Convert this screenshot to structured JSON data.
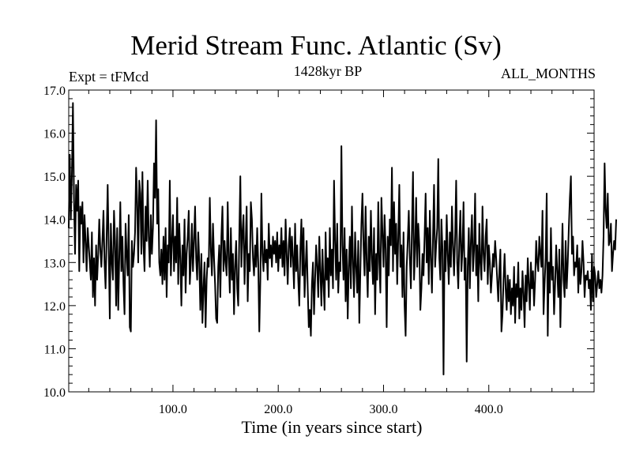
{
  "chart_data": {
    "type": "line",
    "title": "Merid Stream Func. Atlantic (Sv)",
    "subtitle": "1428kyr BP",
    "left_label": "Expt = tFMcd",
    "right_label": "ALL_MONTHS",
    "xlabel": "Time (in years since start)",
    "ylabel": "",
    "xlim": [
      1,
      500
    ],
    "ylim": [
      10.0,
      17.0
    ],
    "x_ticks": [
      100,
      200,
      300,
      400
    ],
    "x_tick_labels": [
      "100.0",
      "200.0",
      "300.0",
      "400.0"
    ],
    "y_ticks": [
      10,
      11,
      12,
      13,
      14,
      15,
      16,
      17
    ],
    "y_tick_labels": [
      "10.0",
      "11.0",
      "12.0",
      "13.0",
      "14.0",
      "15.0",
      "16.0",
      "17.0"
    ],
    "series": [
      {
        "name": "Merid Stream Func. Atlantic",
        "x_start": 1,
        "x_step": 1,
        "values": [
          13.8,
          15.5,
          14.0,
          15.0,
          16.7,
          14.5,
          13.2,
          14.8,
          14.2,
          14.9,
          12.8,
          14.3,
          13.9,
          14.4,
          13.0,
          14.1,
          13.5,
          12.8,
          13.8,
          13.4,
          13.0,
          12.6,
          13.7,
          12.2,
          13.1,
          12.0,
          13.4,
          12.6,
          13.2,
          14.0,
          13.3,
          12.9,
          13.5,
          14.2,
          13.0,
          12.4,
          13.6,
          14.8,
          13.3,
          11.7,
          13.9,
          13.0,
          12.6,
          14.2,
          13.5,
          12.0,
          13.8,
          11.9,
          13.1,
          14.4,
          12.8,
          13.6,
          12.5,
          11.8,
          13.9,
          13.2,
          12.7,
          14.1,
          11.5,
          11.4,
          13.5,
          12.9,
          13.2,
          13.7,
          15.2,
          14.4,
          13.0,
          14.9,
          14.6,
          13.2,
          15.1,
          13.4,
          12.8,
          14.3,
          13.5,
          14.9,
          13.6,
          12.9,
          14.1,
          13.2,
          13.8,
          15.3,
          14.5,
          16.3,
          13.9,
          14.7,
          13.0,
          12.7,
          13.3,
          12.5,
          13.6,
          12.6,
          13.8,
          12.2,
          13.4,
          13.0,
          14.9,
          12.7,
          13.5,
          14.1,
          12.8,
          13.6,
          13.0,
          14.5,
          12.5,
          13.9,
          13.1,
          12.0,
          13.4,
          12.7,
          14.0,
          12.3,
          13.2,
          13.6,
          14.2,
          12.5,
          13.0,
          13.9,
          12.8,
          13.5,
          14.3,
          13.1,
          12.6,
          13.7,
          13.0,
          11.9,
          13.2,
          11.6,
          12.4,
          13.0,
          11.5,
          12.6,
          13.1,
          12.9,
          14.5,
          13.3,
          12.7,
          13.9,
          13.1,
          12.5,
          11.7,
          11.6,
          12.9,
          13.4,
          12.2,
          13.6,
          14.3,
          12.8,
          13.5,
          13.0,
          12.7,
          14.4,
          13.1,
          12.3,
          13.8,
          12.6,
          13.2,
          11.8,
          12.9,
          13.5,
          12.4,
          12.0,
          13.6,
          15.0,
          12.9,
          13.7,
          14.1,
          12.5,
          13.4,
          14.3,
          12.1,
          13.2,
          12.8,
          14.4,
          14.0,
          13.1,
          12.7,
          13.4,
          12.9,
          13.8,
          13.0,
          11.4,
          12.6,
          14.6,
          13.2,
          12.8,
          13.5,
          13.0,
          13.3,
          12.6,
          13.9,
          13.1,
          13.4,
          12.9,
          13.6,
          13.2,
          13.5,
          13.0,
          13.7,
          12.8,
          13.4,
          13.1,
          13.8,
          12.9,
          13.5,
          12.7,
          14.0,
          13.2,
          12.5,
          13.4,
          13.8,
          12.9,
          13.6,
          13.1,
          12.4,
          13.9,
          12.8,
          13.4,
          12.6,
          12.0,
          13.3,
          14.0,
          12.7,
          13.8,
          12.2,
          12.9,
          13.5,
          12.4,
          11.5,
          11.9,
          11.3,
          12.5,
          13.0,
          11.8,
          12.6,
          13.4,
          12.9,
          12.2,
          13.6,
          12.8,
          12.0,
          13.3,
          12.5,
          11.9,
          13.7,
          12.6,
          13.1,
          12.2,
          13.8,
          12.7,
          13.3,
          12.4,
          14.9,
          13.5,
          12.6,
          13.9,
          12.3,
          13.0,
          12.8,
          15.7,
          13.4,
          12.6,
          13.8,
          12.1,
          13.3,
          11.7,
          12.9,
          13.6,
          12.4,
          14.3,
          13.0,
          12.2,
          13.7,
          12.9,
          12.3,
          13.5,
          11.6,
          12.8,
          13.9,
          14.6,
          13.4,
          12.7,
          14.3,
          13.0,
          12.2,
          13.6,
          12.8,
          14.2,
          13.1,
          12.5,
          13.8,
          11.8,
          13.2,
          12.6,
          14.4,
          13.0,
          12.3,
          14.5,
          13.7,
          12.9,
          14.1,
          13.3,
          11.5,
          13.6,
          12.7,
          14.0,
          13.4,
          15.2,
          12.8,
          14.4,
          13.2,
          13.9,
          12.5,
          13.6,
          14.8,
          12.9,
          13.4,
          12.2,
          13.7,
          12.0,
          11.3,
          12.9,
          13.5,
          14.2,
          13.1,
          12.4,
          13.8,
          15.1,
          12.6,
          13.3,
          14.5,
          12.9,
          13.9,
          13.4,
          11.9,
          12.4,
          13.2,
          12.7,
          13.6,
          14.6,
          13.0,
          13.8,
          12.5,
          14.2,
          13.1,
          12.3,
          13.6,
          14.8,
          12.9,
          13.4,
          13.8,
          15.4,
          13.1,
          12.6,
          14.0,
          13.3,
          10.4,
          13.5,
          12.8,
          14.1,
          13.2,
          12.5,
          13.7,
          12.9,
          14.3,
          13.4,
          12.7,
          13.6,
          14.9,
          13.0,
          12.4,
          13.5,
          14.2,
          12.8,
          13.3,
          14.4,
          12.6,
          13.1,
          10.7,
          12.9,
          13.8,
          12.4,
          13.5,
          14.1,
          12.8,
          13.3,
          14.6,
          12.7,
          13.4,
          12.1,
          13.9,
          13.0,
          12.6,
          14.3,
          13.2,
          12.8,
          13.6,
          14.0,
          12.5,
          13.4,
          13.0,
          12.3,
          12.7,
          13.2,
          12.9,
          13.5,
          13.1,
          12.6,
          12.1,
          12.8,
          13.3,
          11.4,
          11.8,
          12.6,
          13.2,
          12.4,
          11.9,
          12.7,
          12.1,
          12.6,
          11.8,
          12.4,
          12.0,
          12.9,
          11.6,
          12.5,
          12.2,
          13.0,
          11.7,
          12.4,
          11.9,
          12.8,
          12.3,
          11.5,
          12.7,
          12.1,
          13.1,
          12.5,
          11.9,
          13.0,
          12.4,
          12.8,
          12.0,
          12.6,
          13.5,
          13.0,
          12.8,
          13.6,
          13.2,
          12.9,
          14.2,
          11.8,
          12.5,
          13.1,
          14.6,
          11.3,
          13.0,
          12.3,
          13.8,
          12.6,
          12.9,
          11.8,
          12.5,
          13.4,
          12.8,
          12.2,
          13.3,
          11.5,
          12.7,
          13.9,
          12.6,
          12.2,
          13.5,
          12.4,
          13.0,
          13.8,
          14.5,
          15.0,
          13.2,
          13.6,
          12.7,
          13.0,
          12.9,
          13.4,
          12.3,
          13.1,
          12.5,
          12.8,
          13.5,
          13.0,
          12.2,
          12.7,
          12.6,
          12.8,
          12.4,
          12.6,
          11.9,
          13.2,
          12.1,
          12.9,
          12.7,
          12.2,
          12.5,
          12.8,
          12.4,
          12.6,
          12.3,
          12.7,
          13.6,
          15.3,
          14.2,
          13.8,
          14.6,
          13.4,
          13.5,
          13.9,
          12.8,
          13.2,
          13.5,
          13.3,
          14.0
        ]
      }
    ]
  }
}
